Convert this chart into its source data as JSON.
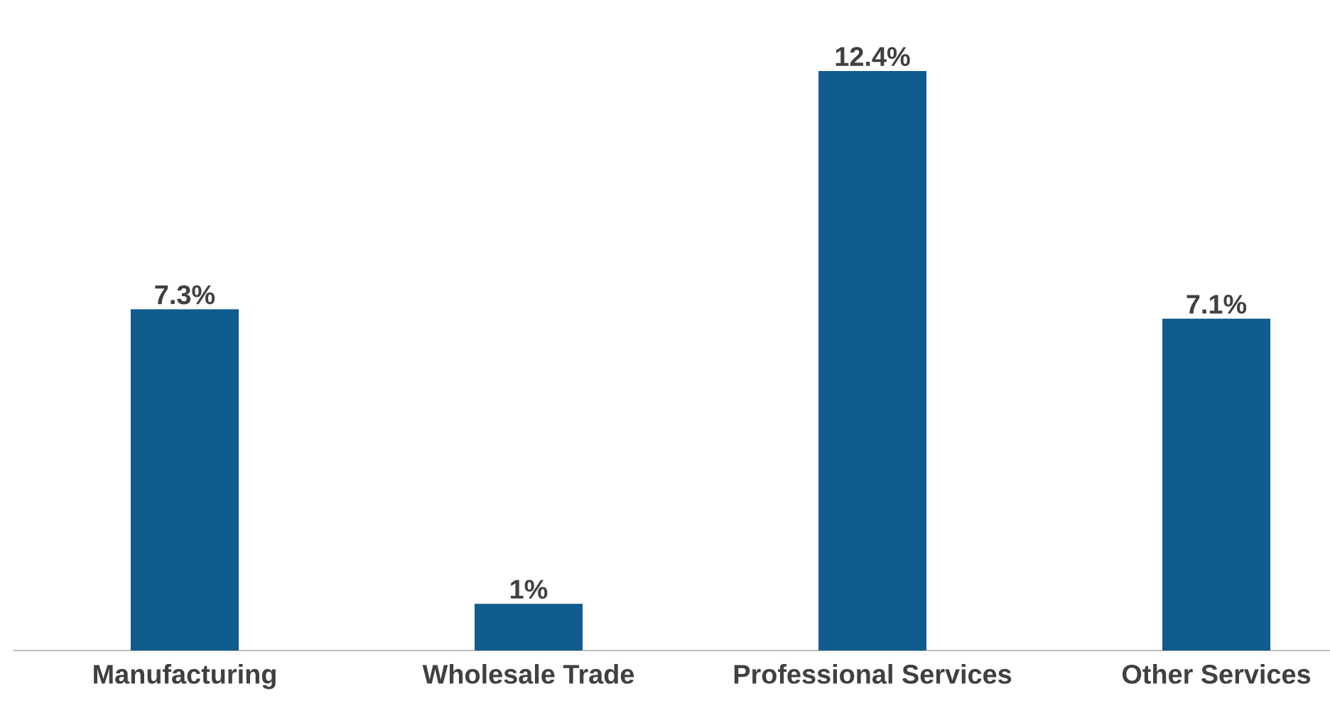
{
  "chart_data": {
    "type": "bar",
    "categories": [
      "Manufacturing",
      "Wholesale Trade",
      "Professional Services",
      "Other Services"
    ],
    "values": [
      7.3,
      1,
      12.4,
      7.1
    ],
    "value_labels": [
      "7.3%",
      "1%",
      "12.4%",
      "7.1%"
    ],
    "color": "#0f5c8f"
  }
}
